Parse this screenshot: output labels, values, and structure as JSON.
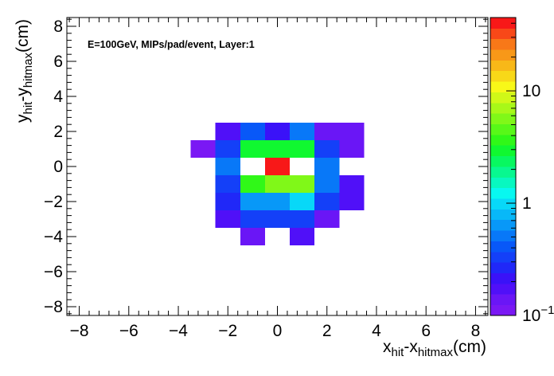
{
  "chart_data": {
    "type": "heatmap",
    "title": "",
    "annotation": "E=100GeV, MIPs/pad/event, Layer:1",
    "xlabel": {
      "main": "x",
      "sub1": "hit",
      "mid": "-x",
      "sub2": "hitmax",
      "unit": "(cm)"
    },
    "ylabel": {
      "main": "y",
      "sub1": "hit",
      "mid": "-y",
      "sub2": "hitmax",
      "unit": "(cm)"
    },
    "xlim": [
      -8.5,
      8.5
    ],
    "ylim": [
      -8.5,
      8.5
    ],
    "x_ticks": [
      -8,
      -6,
      -4,
      -2,
      0,
      2,
      4,
      6,
      8
    ],
    "y_ticks": [
      -8,
      -6,
      -4,
      -2,
      0,
      2,
      4,
      6,
      8
    ],
    "x_tick_labels": [
      "−8",
      "−6",
      "−4",
      "−2",
      "0",
      "2",
      "4",
      "6",
      "8"
    ],
    "y_tick_labels": [
      "−8",
      "−6",
      "−4",
      "−2",
      "0",
      "2",
      "4",
      "6",
      "8"
    ],
    "cell_size": 1.0,
    "z_scale": "log",
    "z_range": [
      0.1,
      45
    ],
    "colorbar": {
      "ticks": [
        0.1,
        1,
        10
      ],
      "labels": [
        {
          "main": "10",
          "sup": "−1"
        },
        {
          "main": "1",
          "sup": ""
        },
        {
          "main": "10",
          "sup": ""
        }
      ],
      "colors": [
        "#7a18f4",
        "#6a16f6",
        "#5010f8",
        "#3a12f8",
        "#2028f8",
        "#1440f8",
        "#0858f8",
        "#0878f8",
        "#0898f8",
        "#08b8f8",
        "#08d8f8",
        "#08f8f0",
        "#08f8c0",
        "#08f890",
        "#08f860",
        "#10f830",
        "#30f818",
        "#58f818",
        "#80f818",
        "#a8f818",
        "#d0f818",
        "#f8f818",
        "#f8d818",
        "#f8b818",
        "#f89818",
        "#f87818",
        "#f84818",
        "#f81818"
      ]
    },
    "cells": [
      {
        "x": -2,
        "y": 2,
        "z": 0.16
      },
      {
        "x": -1,
        "y": 2,
        "z": 0.38
      },
      {
        "x": 0,
        "y": 2,
        "z": 0.22
      },
      {
        "x": 1,
        "y": 2,
        "z": 0.55
      },
      {
        "x": 2,
        "y": 2,
        "z": 0.13
      },
      {
        "x": 3,
        "y": 2,
        "z": 0.13
      },
      {
        "x": -3,
        "y": 1,
        "z": 0.12
      },
      {
        "x": -2,
        "y": 1,
        "z": 0.33
      },
      {
        "x": -1,
        "y": 1,
        "z": 2.8
      },
      {
        "x": 0,
        "y": 1,
        "z": 2.8
      },
      {
        "x": 1,
        "y": 1,
        "z": 3.1
      },
      {
        "x": 2,
        "y": 1,
        "z": 0.33
      },
      {
        "x": 3,
        "y": 1,
        "z": 0.13
      },
      {
        "x": -2,
        "y": 0,
        "z": 0.55
      },
      {
        "x": 0,
        "y": 0,
        "z": 40
      },
      {
        "x": 2,
        "y": 0,
        "z": 0.55
      },
      {
        "x": -2,
        "y": -1,
        "z": 0.36
      },
      {
        "x": -1,
        "y": -1,
        "z": 3.4
      },
      {
        "x": 0,
        "y": -1,
        "z": 5.5
      },
      {
        "x": 1,
        "y": -1,
        "z": 5.5
      },
      {
        "x": 2,
        "y": -1,
        "z": 0.55
      },
      {
        "x": 3,
        "y": -1,
        "z": 0.18
      },
      {
        "x": -2,
        "y": -2,
        "z": 0.26
      },
      {
        "x": -1,
        "y": -2,
        "z": 0.65
      },
      {
        "x": 0,
        "y": -2,
        "z": 0.65
      },
      {
        "x": 1,
        "y": -2,
        "z": 1.05
      },
      {
        "x": 2,
        "y": -2,
        "z": 0.33
      },
      {
        "x": 3,
        "y": -2,
        "z": 0.18
      },
      {
        "x": -2,
        "y": -3,
        "z": 0.16
      },
      {
        "x": -1,
        "y": -3,
        "z": 0.36
      },
      {
        "x": 0,
        "y": -3,
        "z": 0.36
      },
      {
        "x": 1,
        "y": -3,
        "z": 0.36
      },
      {
        "x": 2,
        "y": -3,
        "z": 0.13
      },
      {
        "x": -1,
        "y": -4,
        "z": 0.13
      },
      {
        "x": 1,
        "y": -4,
        "z": 0.16
      }
    ]
  }
}
